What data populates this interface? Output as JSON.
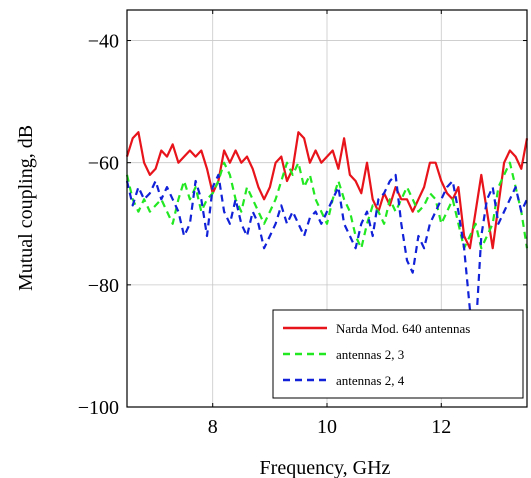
{
  "chart_data": {
    "type": "line",
    "title": "",
    "xlabel": "Frequency, GHz",
    "ylabel": "Mutual coupling, dB",
    "xlim": [
      6.5,
      13.5
    ],
    "ylim": [
      -100,
      -35
    ],
    "xticks": [
      8,
      10,
      12
    ],
    "yticks": [
      -40,
      -60,
      -80,
      -100
    ],
    "xtick_labels": [
      "8",
      "10",
      "12"
    ],
    "ytick_labels": [
      "−40",
      "−60",
      "−80",
      "−100"
    ],
    "grid": true,
    "legend_position": "bottom-right",
    "series": [
      {
        "name": "Narda Mod. 640 antennas",
        "color": "#e8141b",
        "style": "solid",
        "x": [
          6.5,
          6.6,
          6.7,
          6.8,
          6.9,
          7.0,
          7.1,
          7.2,
          7.3,
          7.4,
          7.5,
          7.6,
          7.7,
          7.8,
          7.9,
          8.0,
          8.1,
          8.2,
          8.3,
          8.4,
          8.5,
          8.6,
          8.7,
          8.8,
          8.9,
          9.0,
          9.1,
          9.2,
          9.3,
          9.4,
          9.5,
          9.6,
          9.7,
          9.8,
          9.9,
          10.0,
          10.1,
          10.2,
          10.3,
          10.4,
          10.5,
          10.6,
          10.7,
          10.8,
          10.9,
          11.0,
          11.1,
          11.2,
          11.3,
          11.4,
          11.5,
          11.6,
          11.7,
          11.8,
          11.9,
          12.0,
          12.1,
          12.2,
          12.3,
          12.4,
          12.5,
          12.6,
          12.7,
          12.8,
          12.9,
          13.0,
          13.1,
          13.2,
          13.3,
          13.4,
          13.5
        ],
        "y": [
          -59,
          -56,
          -55,
          -60,
          -62,
          -61,
          -58,
          -59,
          -57,
          -60,
          -59,
          -58,
          -59,
          -58,
          -61,
          -65,
          -63,
          -58,
          -60,
          -58,
          -60,
          -59,
          -61,
          -64,
          -66,
          -64,
          -60,
          -59,
          -63,
          -61,
          -55,
          -56,
          -60,
          -58,
          -60,
          -59,
          -58,
          -61,
          -56,
          -62,
          -63,
          -65,
          -60,
          -66,
          -68,
          -65,
          -67,
          -64,
          -66,
          -66,
          -68,
          -66,
          -64,
          -60,
          -60,
          -63,
          -65,
          -66,
          -64,
          -72,
          -74,
          -68,
          -62,
          -68,
          -74,
          -67,
          -60,
          -58,
          -59,
          -61,
          -56
        ]
      },
      {
        "name": "antennas 2, 3",
        "color": "#22e822",
        "style": "dashed",
        "x": [
          6.5,
          6.6,
          6.7,
          6.8,
          6.9,
          7.0,
          7.1,
          7.2,
          7.3,
          7.4,
          7.5,
          7.6,
          7.7,
          7.8,
          7.9,
          8.0,
          8.1,
          8.2,
          8.3,
          8.4,
          8.5,
          8.6,
          8.7,
          8.8,
          8.9,
          9.0,
          9.1,
          9.2,
          9.3,
          9.4,
          9.5,
          9.6,
          9.7,
          9.8,
          9.9,
          10.0,
          10.1,
          10.2,
          10.3,
          10.4,
          10.5,
          10.6,
          10.7,
          10.8,
          10.9,
          11.0,
          11.1,
          11.2,
          11.3,
          11.4,
          11.5,
          11.6,
          11.7,
          11.8,
          11.9,
          12.0,
          12.1,
          12.2,
          12.3,
          12.4,
          12.5,
          12.6,
          12.7,
          12.8,
          12.9,
          13.0,
          13.1,
          13.2,
          13.3,
          13.4,
          13.5
        ],
        "y": [
          -62,
          -66,
          -68,
          -66,
          -68,
          -67,
          -66,
          -68,
          -70,
          -66,
          -63,
          -66,
          -64,
          -68,
          -66,
          -65,
          -63,
          -60,
          -62,
          -66,
          -68,
          -64,
          -66,
          -68,
          -70,
          -68,
          -66,
          -63,
          -60,
          -62,
          -60,
          -64,
          -62,
          -66,
          -68,
          -70,
          -66,
          -63,
          -66,
          -68,
          -72,
          -74,
          -70,
          -67,
          -68,
          -70,
          -66,
          -68,
          -66,
          -64,
          -66,
          -68,
          -67,
          -65,
          -66,
          -70,
          -68,
          -66,
          -70,
          -74,
          -72,
          -70,
          -74,
          -72,
          -70,
          -64,
          -62,
          -60,
          -64,
          -68,
          -74
        ]
      },
      {
        "name": "antennas 2, 4",
        "color": "#1021d8",
        "style": "dashed",
        "x": [
          6.5,
          6.6,
          6.7,
          6.8,
          6.9,
          7.0,
          7.1,
          7.2,
          7.3,
          7.4,
          7.5,
          7.6,
          7.7,
          7.8,
          7.9,
          8.0,
          8.1,
          8.2,
          8.3,
          8.4,
          8.5,
          8.6,
          8.7,
          8.8,
          8.9,
          9.0,
          9.1,
          9.2,
          9.3,
          9.4,
          9.5,
          9.6,
          9.7,
          9.8,
          9.9,
          10.0,
          10.1,
          10.2,
          10.3,
          10.4,
          10.5,
          10.6,
          10.7,
          10.8,
          10.9,
          11.0,
          11.1,
          11.2,
          11.3,
          11.4,
          11.5,
          11.6,
          11.7,
          11.8,
          11.9,
          12.0,
          12.1,
          12.2,
          12.3,
          12.4,
          12.5,
          12.6,
          12.7,
          12.8,
          12.9,
          13.0,
          13.1,
          13.2,
          13.3,
          13.4,
          13.5
        ],
        "y": [
          -63,
          -67,
          -64,
          -66,
          -65,
          -63,
          -66,
          -64,
          -66,
          -68,
          -72,
          -70,
          -63,
          -66,
          -72,
          -64,
          -62,
          -68,
          -70,
          -66,
          -70,
          -72,
          -68,
          -70,
          -74,
          -72,
          -70,
          -67,
          -70,
          -68,
          -70,
          -72,
          -69,
          -68,
          -70,
          -68,
          -66,
          -64,
          -70,
          -72,
          -74,
          -70,
          -68,
          -72,
          -66,
          -65,
          -63,
          -62,
          -70,
          -76,
          -78,
          -72,
          -74,
          -70,
          -68,
          -66,
          -64,
          -63,
          -68,
          -74,
          -84,
          -88,
          -72,
          -66,
          -64,
          -70,
          -68,
          -66,
          -64,
          -68,
          -66
        ]
      }
    ]
  }
}
